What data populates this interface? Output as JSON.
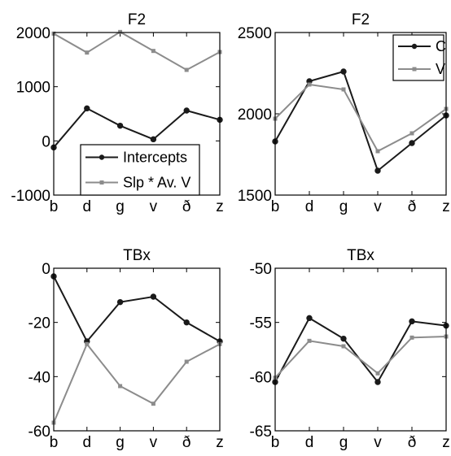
{
  "chart_data": [
    {
      "type": "line",
      "title": "F2",
      "categories": [
        "b",
        "d",
        "g",
        "v",
        "ð",
        "z"
      ],
      "ylim": [
        -1000,
        2000
      ],
      "yticks": [
        -1000,
        0,
        1000,
        2000
      ],
      "grid": false,
      "legend_position": "bottom-right",
      "series": [
        {
          "name": "Intercepts",
          "color": "#1a1a1a",
          "marker": "circle",
          "values": [
            -120,
            600,
            280,
            30,
            560,
            390
          ]
        },
        {
          "name": "Slp * Av. V",
          "color": "#8c8c8c",
          "marker": "square",
          "values": [
            1980,
            1630,
            2010,
            1660,
            1310,
            1640
          ]
        }
      ]
    },
    {
      "type": "line",
      "title": "F2",
      "categories": [
        "b",
        "d",
        "g",
        "v",
        "ð",
        "z"
      ],
      "ylim": [
        1500,
        2500
      ],
      "yticks": [
        1500,
        2000,
        2500
      ],
      "grid": false,
      "legend_position": "top-right",
      "series": [
        {
          "name": "C",
          "color": "#1a1a1a",
          "marker": "circle",
          "values": [
            1830,
            2200,
            2260,
            1650,
            1820,
            1990
          ]
        },
        {
          "name": "V",
          "color": "#8c8c8c",
          "marker": "square",
          "values": [
            1970,
            2180,
            2150,
            1770,
            1880,
            2030
          ]
        }
      ]
    },
    {
      "type": "line",
      "title": "TBx",
      "categories": [
        "b",
        "d",
        "g",
        "v",
        "ð",
        "z"
      ],
      "ylim": [
        -60,
        0
      ],
      "yticks": [
        -60,
        -40,
        -20,
        0
      ],
      "grid": false,
      "legend_position": "none",
      "series": [
        {
          "color": "#1a1a1a",
          "marker": "circle",
          "values": [
            -3,
            -27,
            -12.5,
            -10.5,
            -20,
            -27
          ]
        },
        {
          "color": "#8c8c8c",
          "marker": "square",
          "values": [
            -57,
            -28,
            -43.5,
            -50,
            -34.5,
            -28
          ]
        }
      ]
    },
    {
      "type": "line",
      "title": "TBx",
      "categories": [
        "b",
        "d",
        "g",
        "v",
        "ð",
        "z"
      ],
      "ylim": [
        -65,
        -50
      ],
      "yticks": [
        -65,
        -60,
        -55,
        -50
      ],
      "grid": false,
      "legend_position": "none",
      "series": [
        {
          "color": "#1a1a1a",
          "marker": "circle",
          "values": [
            -60.5,
            -54.6,
            -56.5,
            -60.5,
            -54.9,
            -55.3
          ]
        },
        {
          "color": "#8c8c8c",
          "marker": "square",
          "values": [
            -60.1,
            -56.7,
            -57.2,
            -59.7,
            -56.4,
            -56.3
          ]
        }
      ]
    }
  ]
}
